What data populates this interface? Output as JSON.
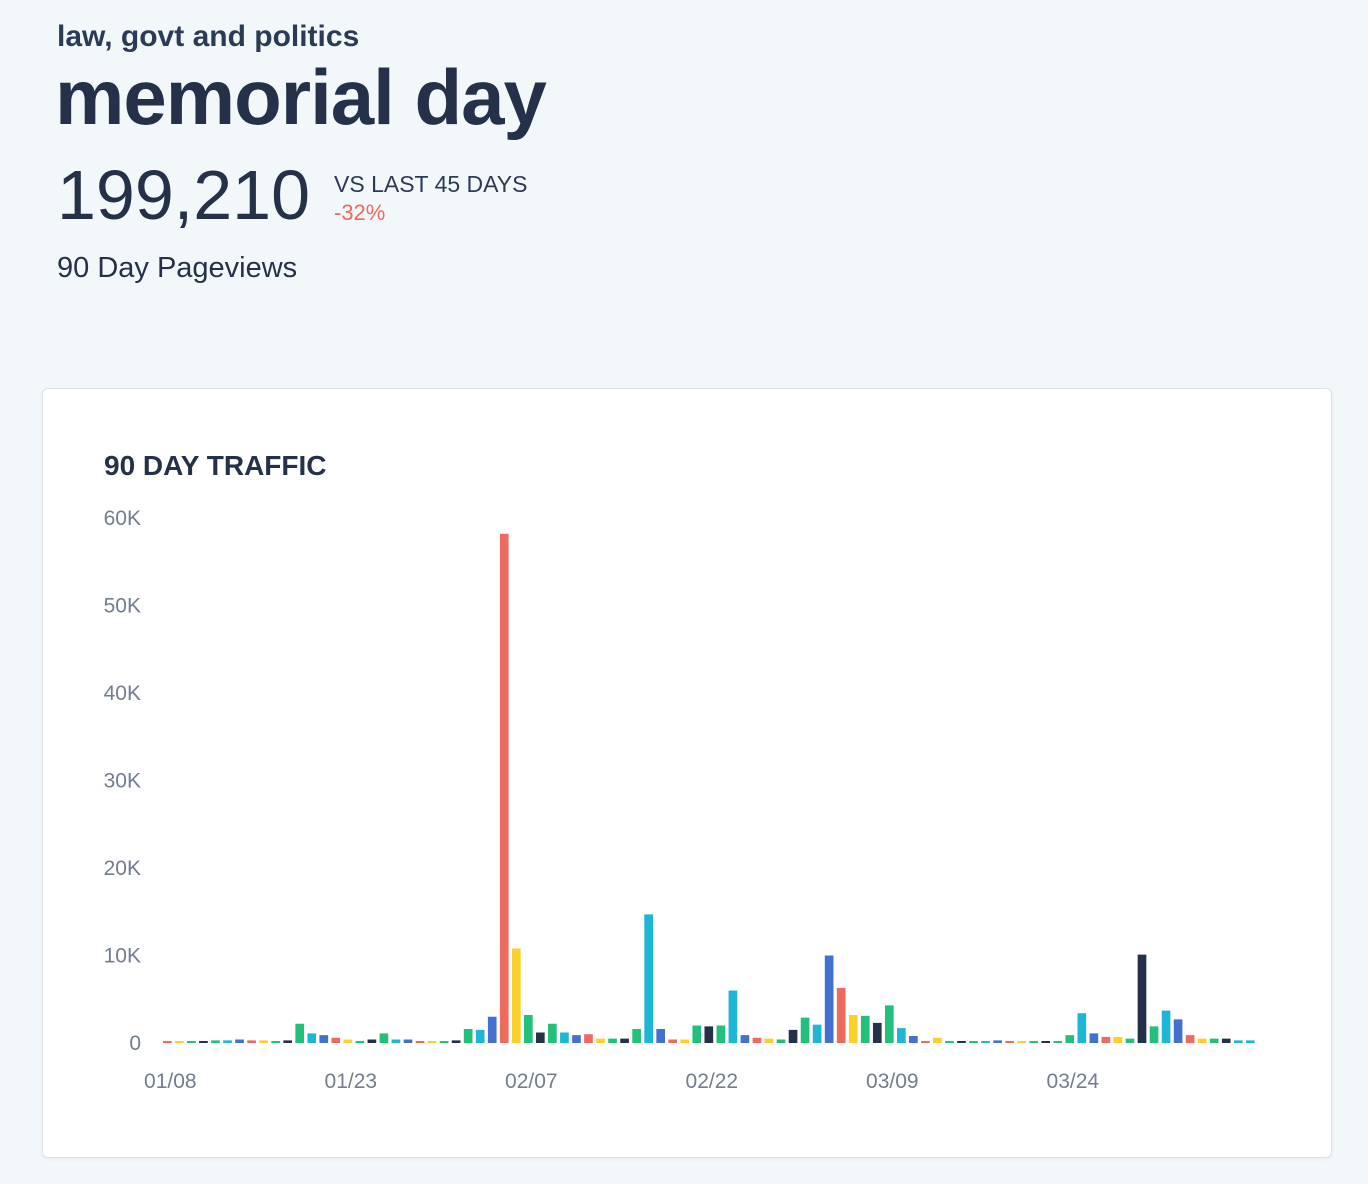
{
  "header": {
    "category": "law, govt and politics",
    "title": "memorial day",
    "total_pageviews": "199,210",
    "comparison_label": "VS LAST 45 DAYS",
    "comparison_change": "-32%",
    "subtitle": "90 Day Pageviews"
  },
  "colors": {
    "red": "#ec6a5e",
    "yellow": "#fbd02c",
    "navy": "#243148",
    "green": "#22c07a",
    "cyan": "#1db6d4",
    "blue": "#4471cf",
    "positive": "#ec6a5e"
  },
  "chart_data": {
    "type": "bar",
    "title": "90 DAY TRAFFIC",
    "xlabel": "",
    "ylabel": "",
    "ylim": [
      0,
      60000
    ],
    "yticks": [
      0,
      10000,
      20000,
      30000,
      40000,
      50000,
      60000
    ],
    "ytick_labels": [
      "0",
      "10K",
      "20K",
      "30K",
      "40K",
      "50K",
      "60K"
    ],
    "xtick_labels": [
      "01/08",
      "01/23",
      "02/07",
      "02/22",
      "03/09",
      "03/24"
    ],
    "xtick_indices": [
      0,
      15,
      30,
      45,
      60,
      75
    ],
    "categories_start": "01/08",
    "values": [
      200,
      200,
      200,
      200,
      300,
      300,
      400,
      300,
      300,
      200,
      300,
      2200,
      1100,
      900,
      600,
      400,
      200,
      400,
      1100,
      400,
      400,
      200,
      200,
      200,
      300,
      1600,
      1500,
      3000,
      58200,
      10800,
      3200,
      1200,
      2200,
      1200,
      900,
      1000,
      500,
      500,
      500,
      1600,
      14700,
      1600,
      400,
      400,
      2000,
      1900,
      2000,
      6000,
      900,
      600,
      500,
      400,
      1500,
      2900,
      2100,
      10000,
      6300,
      3200,
      3100,
      2300,
      4300,
      1700,
      800,
      200,
      600,
      200,
      200,
      200,
      200,
      300,
      200,
      200,
      200,
      200,
      200,
      900,
      3400,
      1100,
      700,
      700,
      500,
      10100,
      1900,
      3700,
      2700,
      900,
      500,
      500,
      500,
      300,
      300
    ],
    "bar_colors": [
      "red",
      "yellow",
      "green",
      "navy",
      "green",
      "cyan",
      "blue",
      "red",
      "yellow",
      "green",
      "navy",
      "green",
      "cyan",
      "blue",
      "red",
      "yellow",
      "green",
      "navy",
      "green",
      "cyan",
      "blue",
      "red",
      "yellow",
      "green",
      "navy",
      "green",
      "cyan",
      "blue",
      "red",
      "yellow",
      "green",
      "navy",
      "green",
      "cyan",
      "blue",
      "red",
      "yellow",
      "green",
      "navy",
      "green",
      "cyan",
      "blue",
      "red",
      "yellow",
      "green",
      "navy",
      "green",
      "cyan",
      "blue",
      "red",
      "yellow",
      "green",
      "navy",
      "green",
      "cyan",
      "blue",
      "red",
      "yellow",
      "green",
      "navy",
      "green",
      "cyan",
      "blue",
      "red",
      "yellow",
      "green",
      "navy",
      "green",
      "cyan",
      "blue",
      "red",
      "yellow",
      "green",
      "navy",
      "green",
      "green",
      "cyan",
      "blue",
      "red",
      "yellow",
      "green",
      "navy",
      "green",
      "cyan",
      "blue",
      "red",
      "yellow",
      "green",
      "navy",
      "cyan",
      "cyan"
    ]
  }
}
